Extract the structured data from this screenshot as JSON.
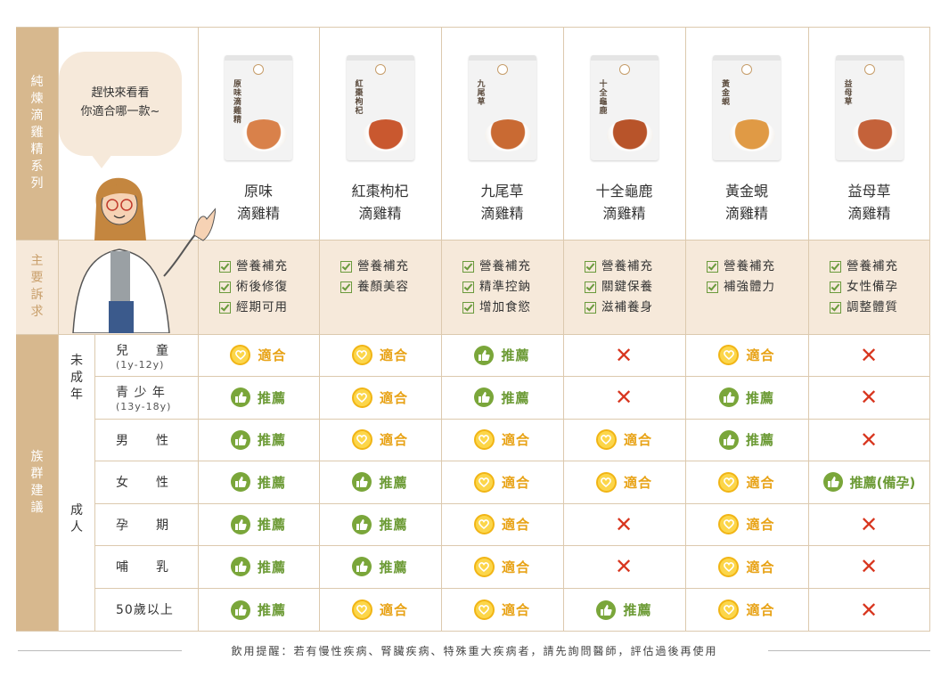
{
  "sidebar": {
    "series": "純煉滴雞精系列",
    "needs": "主要訴求",
    "groups": "族群建議"
  },
  "bubble": {
    "line1": "趕快來看看",
    "line2": "你適合哪一款~"
  },
  "products": [
    {
      "name1": "原味",
      "name2": "滴雞精",
      "box_title": "原味滴雞精",
      "bowl": "#d9814a"
    },
    {
      "name1": "紅棗枸杞",
      "name2": "滴雞精",
      "box_title": "紅棗枸杞",
      "bowl": "#c9582f"
    },
    {
      "name1": "九尾草",
      "name2": "滴雞精",
      "box_title": "九尾草",
      "bowl": "#c96a33"
    },
    {
      "name1": "十全龜鹿",
      "name2": "滴雞精",
      "box_title": "十全龜鹿",
      "bowl": "#b8542a"
    },
    {
      "name1": "黃金蜆",
      "name2": "滴雞精",
      "box_title": "黃金蜆",
      "bowl": "#e09a45"
    },
    {
      "name1": "益母草",
      "name2": "滴雞精",
      "box_title": "益母草",
      "bowl": "#c4623a"
    }
  ],
  "needs": [
    [
      "營養補充",
      "術後修復",
      "經期可用"
    ],
    [
      "營養補充",
      "養顏美容"
    ],
    [
      "營養補充",
      "精準控鈉",
      "增加食慾"
    ],
    [
      "營養補充",
      "關鍵保養",
      "滋補養身"
    ],
    [
      "營養補充",
      "補強體力"
    ],
    [
      "營養補充",
      "女性備孕",
      "調整體質"
    ]
  ],
  "groups": {
    "minor": "未成年",
    "adult": "成人"
  },
  "rows": [
    {
      "label": "兒　　童",
      "sub": "(1y-12y)",
      "cells": [
        "suit",
        "suit",
        "reco",
        "no",
        "suit",
        "no"
      ]
    },
    {
      "label": "青 少 年",
      "sub": "(13y-18y)",
      "cells": [
        "reco",
        "suit",
        "reco",
        "no",
        "reco",
        "no"
      ]
    },
    {
      "label": "男　　性",
      "sub": "",
      "cells": [
        "reco",
        "suit",
        "suit",
        "suit",
        "reco",
        "no"
      ]
    },
    {
      "label": "女　　性",
      "sub": "",
      "cells": [
        "reco",
        "reco",
        "suit",
        "suit",
        "suit",
        "reco_special"
      ]
    },
    {
      "label": "孕　　期",
      "sub": "",
      "cells": [
        "reco",
        "reco",
        "suit",
        "no",
        "suit",
        "no"
      ]
    },
    {
      "label": "哺　　乳",
      "sub": "",
      "cells": [
        "reco",
        "reco",
        "suit",
        "no",
        "suit",
        "no"
      ]
    },
    {
      "label": "50歲以上",
      "sub": "",
      "cells": [
        "reco",
        "suit",
        "suit",
        "reco",
        "suit",
        "no"
      ]
    }
  ],
  "labels": {
    "suit": "適合",
    "reco": "推薦",
    "reco_special": "推薦(備孕)",
    "no": "✕"
  },
  "colors": {
    "frame": "#d7b88e",
    "light": "#f6e9da",
    "suit": "#f1b515",
    "reco": "#7aa63a",
    "no": "#d8361f"
  },
  "footer": "飲用提醒：若有慢性疾病、腎臟疾病、特殊重大疾病者，請先詢問醫師，評估過後再使用"
}
